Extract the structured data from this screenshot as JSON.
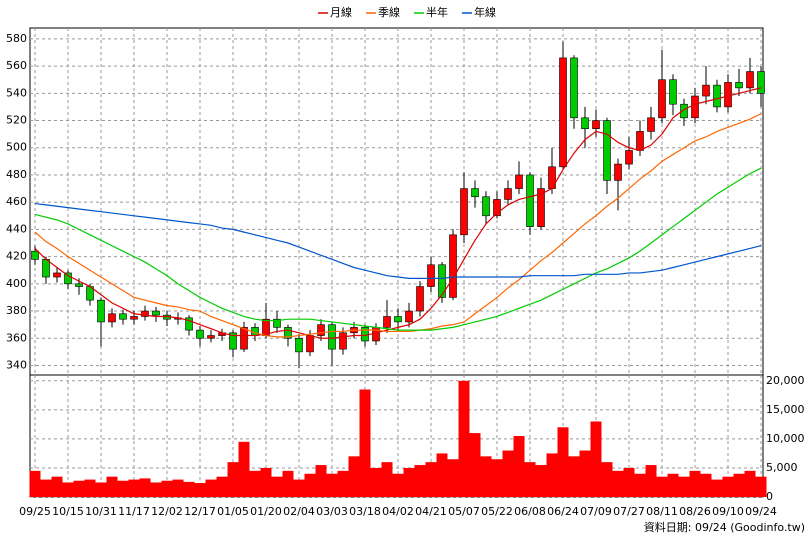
{
  "chart_data": [
    {
      "type": "candlestick",
      "categories": [
        "09/25",
        null,
        null,
        "10/15",
        null,
        null,
        "10/31",
        null,
        null,
        "11/17",
        null,
        null,
        "12/02",
        null,
        null,
        "12/17",
        null,
        null,
        "01/05",
        null,
        null,
        "01/20",
        null,
        null,
        "02/04",
        null,
        null,
        "03/03",
        null,
        null,
        "03/18",
        null,
        null,
        "04/02",
        null,
        null,
        "04/21",
        null,
        null,
        "05/07",
        null,
        null,
        "05/22",
        null,
        null,
        "06/08",
        null,
        null,
        "06/24",
        null,
        null,
        "07/09",
        null,
        null,
        "07/27",
        null,
        null,
        "08/11",
        null,
        null,
        "08/26",
        null,
        null,
        "09/10",
        null,
        null,
        "09/24"
      ],
      "open": [
        424,
        418,
        405,
        408,
        400,
        398,
        388,
        372,
        378,
        374,
        376,
        380,
        377,
        374,
        375,
        366,
        360,
        362,
        364,
        352,
        368,
        362,
        374,
        368,
        360,
        350,
        362,
        370,
        352,
        364,
        368,
        358,
        368,
        376,
        372,
        380,
        398,
        414,
        390,
        436,
        470,
        464,
        450,
        462,
        470,
        480,
        442,
        470,
        486,
        566,
        522,
        514,
        520,
        476,
        488,
        498,
        512,
        522,
        550,
        532,
        522,
        538,
        546,
        530,
        548,
        544,
        556
      ],
      "high": [
        428,
        420,
        412,
        410,
        404,
        400,
        390,
        382,
        381,
        380,
        384,
        383,
        380,
        379,
        377,
        369,
        366,
        367,
        366,
        372,
        371,
        386,
        380,
        370,
        363,
        366,
        374,
        372,
        368,
        372,
        370,
        371,
        388,
        382,
        386,
        402,
        420,
        416,
        440,
        482,
        476,
        468,
        468,
        476,
        490,
        482,
        478,
        500,
        578,
        568,
        530,
        528,
        522,
        492,
        508,
        520,
        530,
        572,
        554,
        536,
        544,
        560,
        550,
        554,
        558,
        566,
        560
      ],
      "low": [
        414,
        400,
        401,
        396,
        392,
        384,
        354,
        368,
        370,
        370,
        373,
        372,
        369,
        370,
        362,
        354,
        357,
        358,
        346,
        350,
        358,
        360,
        364,
        354,
        338,
        347,
        358,
        340,
        348,
        360,
        354,
        355,
        364,
        366,
        368,
        376,
        394,
        386,
        388,
        430,
        456,
        444,
        448,
        458,
        466,
        436,
        440,
        466,
        484,
        514,
        500,
        508,
        466,
        454,
        484,
        494,
        506,
        518,
        524,
        516,
        518,
        532,
        526,
        526,
        538,
        540,
        530
      ],
      "close": [
        418,
        405,
        408,
        400,
        398,
        388,
        372,
        378,
        374,
        376,
        380,
        377,
        374,
        375,
        366,
        360,
        362,
        364,
        352,
        368,
        362,
        374,
        368,
        360,
        350,
        362,
        370,
        352,
        364,
        368,
        358,
        368,
        376,
        372,
        380,
        398,
        414,
        390,
        436,
        470,
        464,
        450,
        462,
        470,
        480,
        442,
        470,
        486,
        566,
        522,
        514,
        520,
        476,
        488,
        498,
        512,
        522,
        550,
        532,
        522,
        538,
        546,
        530,
        548,
        544,
        556,
        540
      ],
      "up_color": "#ff0000",
      "down_color": "#00cc00",
      "series": [
        {
          "name": "月線",
          "color": "#dd0000",
          "values": [
            426,
            418,
            412,
            406,
            402,
            398,
            392,
            386,
            382,
            378,
            377,
            376,
            376,
            375,
            373,
            370,
            367,
            364,
            362,
            362,
            362,
            363,
            365,
            366,
            364,
            362,
            360,
            360,
            361,
            362,
            362,
            364,
            366,
            368,
            370,
            374,
            382,
            392,
            404,
            418,
            432,
            444,
            452,
            458,
            462,
            464,
            466,
            470,
            484,
            496,
            506,
            512,
            510,
            504,
            500,
            498,
            502,
            510,
            522,
            528,
            532,
            534,
            536,
            538,
            540,
            542,
            544
          ]
        },
        {
          "name": "季線",
          "color": "#ff6600",
          "values": [
            438,
            431,
            426,
            420,
            415,
            410,
            405,
            400,
            395,
            390,
            388,
            386,
            384,
            383,
            381,
            380,
            376,
            373,
            370,
            367,
            364,
            362,
            361,
            361,
            362,
            363,
            364,
            365,
            365,
            366,
            366,
            366,
            365,
            365,
            365,
            366,
            367,
            369,
            370,
            372,
            378,
            384,
            390,
            397,
            403,
            410,
            417,
            423,
            430,
            437,
            444,
            450,
            457,
            463,
            470,
            477,
            483,
            490,
            495,
            500,
            505,
            508,
            512,
            515,
            518,
            521,
            525
          ]
        },
        {
          "name": "半年",
          "color": "#00cc00",
          "values": [
            451,
            449,
            447,
            444,
            440,
            436,
            432,
            428,
            424,
            420,
            416,
            411,
            406,
            400,
            395,
            390,
            386,
            382,
            379,
            376,
            374,
            373,
            373,
            374,
            374,
            374,
            373,
            372,
            371,
            370,
            369,
            368,
            367,
            366,
            366,
            366,
            366,
            367,
            368,
            370,
            372,
            374,
            376,
            379,
            382,
            385,
            388,
            392,
            396,
            400,
            404,
            408,
            411,
            415,
            419,
            424,
            430,
            436,
            442,
            448,
            454,
            460,
            466,
            471,
            476,
            481,
            485
          ]
        },
        {
          "name": "年線",
          "color": "#0055cc",
          "values": [
            459,
            458,
            457,
            456,
            455,
            454,
            453,
            452,
            451,
            450,
            449,
            448,
            447,
            446,
            445,
            444,
            443,
            441,
            440,
            438,
            436,
            434,
            432,
            430,
            427,
            424,
            421,
            418,
            415,
            412,
            410,
            408,
            406,
            405,
            404,
            404,
            404,
            404,
            405,
            405,
            405,
            405,
            405,
            405,
            405,
            406,
            406,
            406,
            406,
            406,
            407,
            407,
            407,
            407,
            408,
            408,
            409,
            410,
            412,
            414,
            416,
            418,
            420,
            422,
            424,
            426,
            428
          ]
        }
      ],
      "ylim": [
        333,
        588
      ],
      "yticks": [
        340,
        360,
        380,
        400,
        420,
        440,
        460,
        480,
        500,
        520,
        540,
        560,
        580
      ],
      "grid": true
    },
    {
      "type": "bar",
      "color": "#ff0000",
      "values": [
        4500,
        3000,
        3500,
        2500,
        2800,
        3000,
        2500,
        3500,
        2800,
        3000,
        3200,
        2500,
        2800,
        3000,
        2600,
        2400,
        3000,
        3500,
        6000,
        9500,
        4500,
        5000,
        3500,
        4500,
        3000,
        4000,
        5500,
        4000,
        4500,
        7000,
        18500,
        5000,
        6000,
        4000,
        5000,
        5500,
        6000,
        7500,
        6500,
        20000,
        11000,
        7000,
        6500,
        8000,
        10500,
        6000,
        5500,
        7500,
        12000,
        7000,
        8000,
        13000,
        6000,
        4500,
        5000,
        4000,
        5500,
        3500,
        4000,
        3500,
        4500,
        4000,
        3000,
        3500,
        4000,
        4500,
        3500
      ],
      "ylim": [
        0,
        21000
      ],
      "yticks": [
        0,
        {
          "value": 5000,
          "label": "5,000"
        },
        {
          "value": 10000,
          "label": "10,000"
        },
        {
          "value": 15000,
          "label": "15,000"
        },
        {
          "value": 20000,
          "label": "20,000"
        }
      ],
      "grid": true,
      "footer": "資料日期: 09/24  (Goodinfo.tw)"
    }
  ]
}
